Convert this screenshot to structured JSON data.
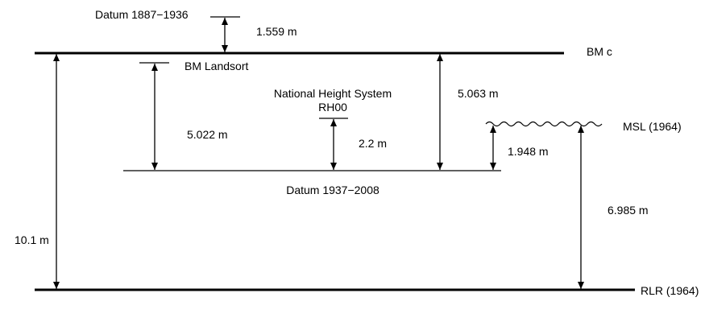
{
  "labels": {
    "datum_1887": "Datum 1887−1936",
    "offset_1887": "1.559 m",
    "bm_c": "BM c",
    "bm_landsort": "BM Landsort",
    "nhs_line1": "National Height System",
    "nhs_line2": "RH00",
    "offset_landsort": "5.022 m",
    "offset_rh00": "2.2 m",
    "offset_bmc": "5.063 m",
    "msl": "MSL (1964)",
    "offset_msl": "1.948 m",
    "datum_1937": "Datum 1937−2008",
    "offset_total": "10.1 m",
    "offset_msl_rlr": "6.985 m",
    "rlr": "RLR (1964)"
  },
  "colors": {
    "line": "#000000",
    "background": "#ffffff"
  }
}
